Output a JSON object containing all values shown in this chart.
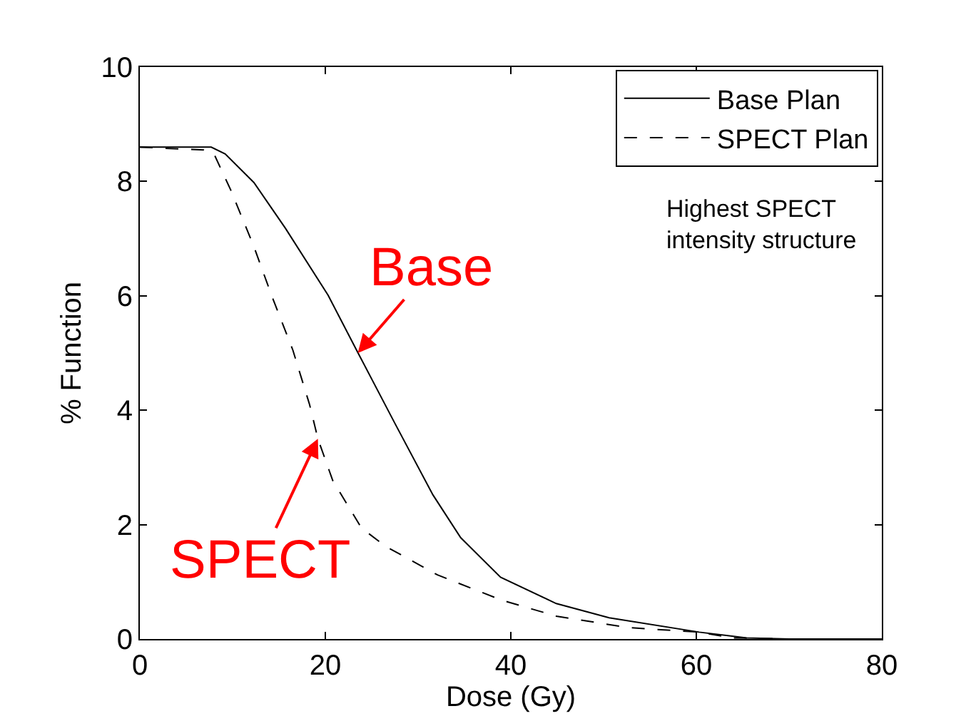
{
  "chart_data": {
    "type": "line",
    "xlabel": "Dose (Gy)",
    "ylabel": "% Function",
    "xlim": [
      0,
      80
    ],
    "xticks": [
      0,
      20,
      40,
      60,
      80
    ],
    "ylim": [
      0,
      10
    ],
    "yticks": [
      0,
      2,
      4,
      6,
      8,
      10
    ],
    "legend": "top right",
    "marker": "none",
    "series": [
      {
        "name": "Base Plan",
        "color": "#000000",
        "line_style": "solid",
        "x": [
          0,
          7.7,
          9.2,
          12.3,
          15.7,
          20.3,
          23.5,
          27.5,
          31.6,
          34.6,
          38.9,
          44.9,
          50.6,
          60.3,
          65.4,
          70,
          80
        ],
        "values": [
          8.6,
          8.6,
          8.48,
          7.98,
          7.18,
          6.01,
          5.01,
          3.77,
          2.52,
          1.77,
          1.08,
          0.62,
          0.37,
          0.12,
          0.02,
          0,
          0
        ]
      },
      {
        "name": "SPECT Plan",
        "color": "#000000",
        "line_style": "dashed",
        "x": [
          0,
          6.9,
          8.0,
          9.8,
          12.3,
          14.2,
          16.5,
          18.3,
          19.2,
          20.8,
          23.9,
          26.5,
          32.1,
          39.0,
          44.9,
          52.6,
          60.3,
          63.8,
          70,
          80
        ],
        "values": [
          8.6,
          8.55,
          8.48,
          7.85,
          6.86,
          6.01,
          5.05,
          4.1,
          3.5,
          2.77,
          1.94,
          1.62,
          1.12,
          0.68,
          0.4,
          0.2,
          0.12,
          0.02,
          0,
          0
        ]
      }
    ],
    "annotations": [
      {
        "text": "Base",
        "x": 23.5,
        "y": 5.0
      },
      {
        "text": "SPECT",
        "x": 19.2,
        "y": 3.5
      },
      "Highest SPECT\nintensity structure"
    ]
  }
}
